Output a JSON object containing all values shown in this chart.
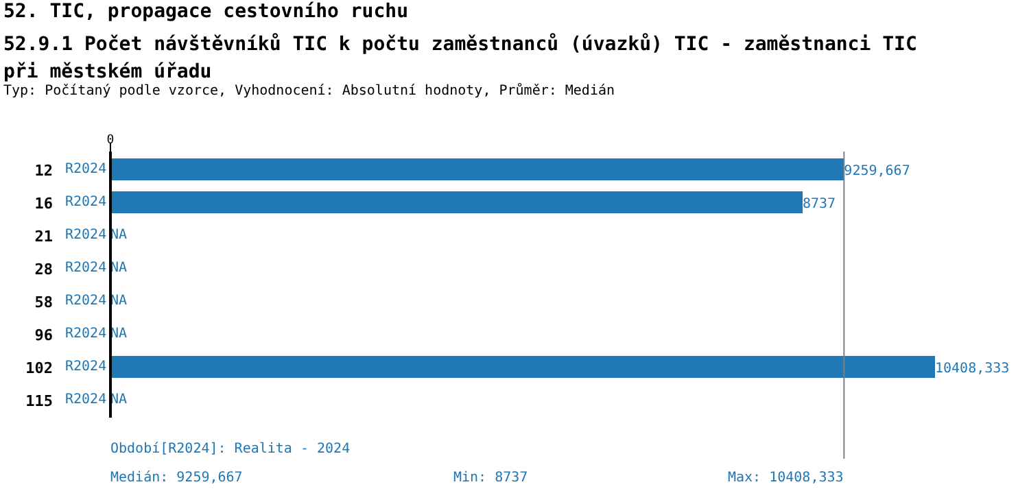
{
  "chart_data": {
    "type": "bar",
    "orientation": "horizontal",
    "title": "52. TIC, propagace cestovního ruchu",
    "subtitle": "52.9.1 Počet návštěvníků TIC k počtu zaměstnanců (úvazků) TIC - zaměstnanci TIC při městském úřadu",
    "categories": [
      "12",
      "16",
      "21",
      "28",
      "58",
      "96",
      "102",
      "115"
    ],
    "series": [
      {
        "name": "R2024",
        "color": "#1f77b4",
        "values": [
          9259.667,
          8737,
          null,
          null,
          null,
          null,
          10408.333,
          null
        ],
        "value_labels": [
          "9259,667",
          "8737",
          "NA",
          "NA",
          "NA",
          "NA",
          "10408,333",
          "NA"
        ]
      }
    ],
    "grid": false,
    "legend": false,
    "ref_lines": [
      {
        "axis": "x",
        "value": 9259.667,
        "color": "#808080"
      }
    ],
    "annotations": [
      "Typ: Počítaný podle vzorce, Vyhodnocení: Absolutní hodnoty, Průměr: Medián",
      "Období[R2024]: Realita - 2024",
      "Medián: 9259,667",
      "Min: 8737",
      "Max: 10408,333",
      "0"
    ]
  }
}
